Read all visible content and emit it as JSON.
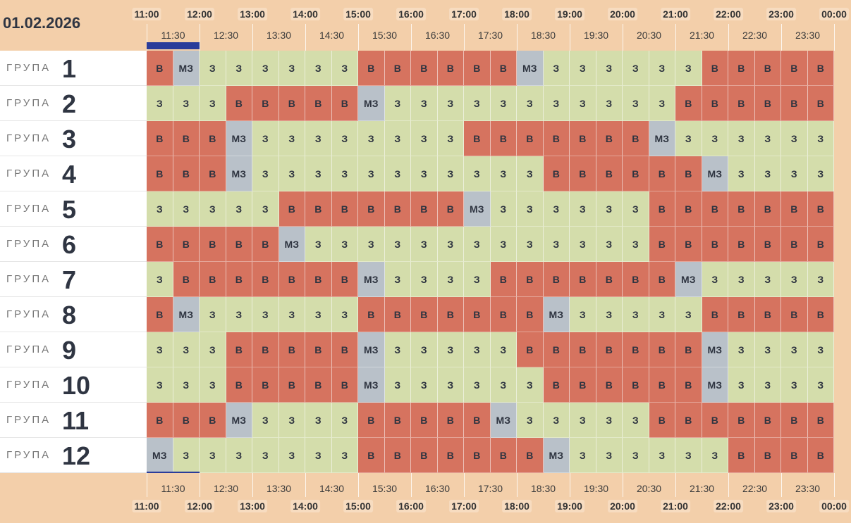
{
  "date": "01.02.2026",
  "hours": [
    "11:00",
    "12:00",
    "13:00",
    "14:00",
    "15:00",
    "16:00",
    "17:00",
    "18:00",
    "19:00",
    "20:00",
    "21:00",
    "22:00",
    "23:00",
    "00:00"
  ],
  "half_hours": [
    "11:30",
    "12:30",
    "13:30",
    "14:30",
    "15:30",
    "16:30",
    "17:30",
    "18:30",
    "19:30",
    "20:30",
    "21:30",
    "22:30",
    "23:30"
  ],
  "colors": {
    "В": "#d6735f",
    "З": "#d4ddab",
    "МЗ": "#b9c1c9"
  },
  "groups": [
    {
      "label": "ГРУПА",
      "number": "1",
      "cells": [
        "В",
        "МЗ",
        "З",
        "З",
        "З",
        "З",
        "З",
        "З",
        "В",
        "В",
        "В",
        "В",
        "В",
        "В",
        "МЗ",
        "З",
        "З",
        "З",
        "З",
        "З",
        "З",
        "В",
        "В",
        "В",
        "В",
        "В"
      ]
    },
    {
      "label": "ГРУПА",
      "number": "2",
      "cells": [
        "З",
        "З",
        "З",
        "В",
        "В",
        "В",
        "В",
        "В",
        "МЗ",
        "З",
        "З",
        "З",
        "З",
        "З",
        "З",
        "З",
        "З",
        "З",
        "З",
        "З",
        "В",
        "В",
        "В",
        "В",
        "В",
        "В"
      ]
    },
    {
      "label": "ГРУПА",
      "number": "3",
      "cells": [
        "В",
        "В",
        "В",
        "МЗ",
        "З",
        "З",
        "З",
        "З",
        "З",
        "З",
        "З",
        "З",
        "В",
        "В",
        "В",
        "В",
        "В",
        "В",
        "В",
        "МЗ",
        "З",
        "З",
        "З",
        "З",
        "З",
        "З"
      ]
    },
    {
      "label": "ГРУПА",
      "number": "4",
      "cells": [
        "В",
        "В",
        "В",
        "МЗ",
        "З",
        "З",
        "З",
        "З",
        "З",
        "З",
        "З",
        "З",
        "З",
        "З",
        "З",
        "В",
        "В",
        "В",
        "В",
        "В",
        "В",
        "МЗ",
        "З",
        "З",
        "З",
        "З"
      ]
    },
    {
      "label": "ГРУПА",
      "number": "5",
      "cells": [
        "З",
        "З",
        "З",
        "З",
        "З",
        "В",
        "В",
        "В",
        "В",
        "В",
        "В",
        "В",
        "МЗ",
        "З",
        "З",
        "З",
        "З",
        "З",
        "З",
        "В",
        "В",
        "В",
        "В",
        "В",
        "В",
        "В"
      ]
    },
    {
      "label": "ГРУПА",
      "number": "6",
      "cells": [
        "В",
        "В",
        "В",
        "В",
        "В",
        "МЗ",
        "З",
        "З",
        "З",
        "З",
        "З",
        "З",
        "З",
        "З",
        "З",
        "З",
        "З",
        "З",
        "З",
        "В",
        "В",
        "В",
        "В",
        "В",
        "В",
        "В"
      ]
    },
    {
      "label": "ГРУПА",
      "number": "7",
      "cells": [
        "З",
        "В",
        "В",
        "В",
        "В",
        "В",
        "В",
        "В",
        "МЗ",
        "З",
        "З",
        "З",
        "З",
        "В",
        "В",
        "В",
        "В",
        "В",
        "В",
        "В",
        "МЗ",
        "З",
        "З",
        "З",
        "З",
        "З"
      ]
    },
    {
      "label": "ГРУПА",
      "number": "8",
      "cells": [
        "В",
        "МЗ",
        "З",
        "З",
        "З",
        "З",
        "З",
        "З",
        "В",
        "В",
        "В",
        "В",
        "В",
        "В",
        "В",
        "МЗ",
        "З",
        "З",
        "З",
        "З",
        "З",
        "В",
        "В",
        "В",
        "В",
        "В"
      ]
    },
    {
      "label": "ГРУПА",
      "number": "9",
      "cells": [
        "З",
        "З",
        "З",
        "В",
        "В",
        "В",
        "В",
        "В",
        "МЗ",
        "З",
        "З",
        "З",
        "З",
        "З",
        "В",
        "В",
        "В",
        "В",
        "В",
        "В",
        "В",
        "МЗ",
        "З",
        "З",
        "З",
        "З"
      ]
    },
    {
      "label": "ГРУПА",
      "number": "10",
      "cells": [
        "З",
        "З",
        "З",
        "В",
        "В",
        "В",
        "В",
        "В",
        "МЗ",
        "З",
        "З",
        "З",
        "З",
        "З",
        "З",
        "В",
        "В",
        "В",
        "В",
        "В",
        "В",
        "МЗ",
        "З",
        "З",
        "З",
        "З"
      ]
    },
    {
      "label": "ГРУПА",
      "number": "11",
      "cells": [
        "В",
        "В",
        "В",
        "МЗ",
        "З",
        "З",
        "З",
        "З",
        "В",
        "В",
        "В",
        "В",
        "В",
        "МЗ",
        "З",
        "З",
        "З",
        "З",
        "З",
        "В",
        "В",
        "В",
        "В",
        "В",
        "В",
        "В"
      ]
    },
    {
      "label": "ГРУПА",
      "number": "12",
      "cells": [
        "МЗ",
        "З",
        "З",
        "З",
        "З",
        "З",
        "З",
        "З",
        "В",
        "В",
        "В",
        "В",
        "В",
        "В",
        "В",
        "МЗ",
        "З",
        "З",
        "З",
        "З",
        "З",
        "З",
        "В",
        "В",
        "В",
        "В"
      ]
    }
  ]
}
